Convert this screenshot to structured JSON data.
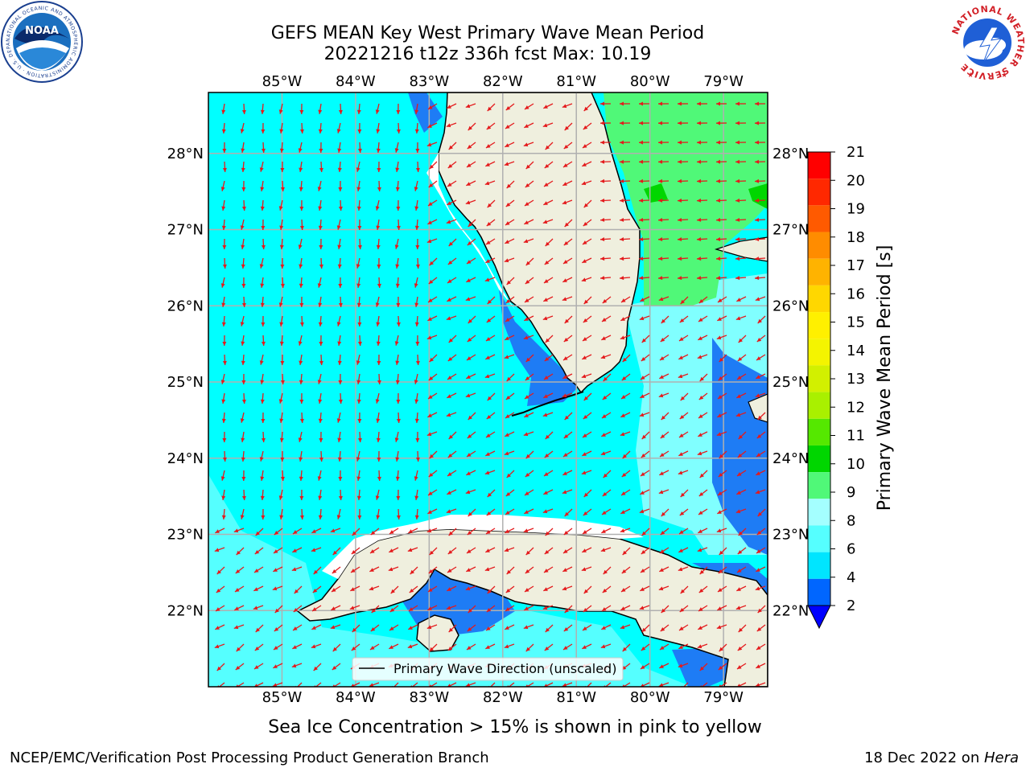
{
  "title": {
    "line1": "GEFS MEAN Key West Primary Wave Mean Period",
    "line2": "20221216 t12z 336h fcst   Max: 10.19"
  },
  "logos": {
    "noaa_text": "NOAA",
    "noaa_ring": "NATIONAL OCEANIC AND ATMOSPHERIC ADMINISTRATION · U.S. DEPARTMENT OF COMMERCE",
    "nws_ring": "NATIONAL WEATHER SERVICE"
  },
  "map": {
    "lon_labels": [
      "85°W",
      "84°W",
      "83°W",
      "82°W",
      "81°W",
      "80°W",
      "79°W"
    ],
    "lat_labels": [
      "28°N",
      "27°N",
      "26°N",
      "25°N",
      "24°N",
      "23°N",
      "22°N"
    ],
    "lon_range": [
      -86.0,
      -78.4
    ],
    "lat_range": [
      21.0,
      28.8
    ],
    "grid": true,
    "legend_label": "Primary Wave Direction (unscaled)",
    "vector_color": "#e41a1c"
  },
  "colorbar": {
    "label": "Primary Wave Mean Period [s]",
    "ticks": [
      "2",
      "4",
      "6",
      "8",
      "9",
      "10",
      "11",
      "12",
      "13",
      "14",
      "15",
      "16",
      "17",
      "18",
      "19",
      "20",
      "21"
    ],
    "colors": [
      "#0066ff",
      "#00e5ff",
      "#55ffff",
      "#a4ffff",
      "#50f878",
      "#00d600",
      "#55e800",
      "#a9f000",
      "#d2f000",
      "#f4f400",
      "#fff000",
      "#ffd700",
      "#ffb300",
      "#ff8c00",
      "#ff5a00",
      "#ff2800",
      "#ff0000"
    ],
    "extend_color": "#0000ff"
  },
  "annotation": "Sea Ice Concentration > 15% is shown in pink to yellow",
  "footer": {
    "left": "NCEP/EMC/Verification Post Processing Product Generation Branch",
    "date": "18 Dec 2022 on ",
    "machine": "Hera"
  }
}
